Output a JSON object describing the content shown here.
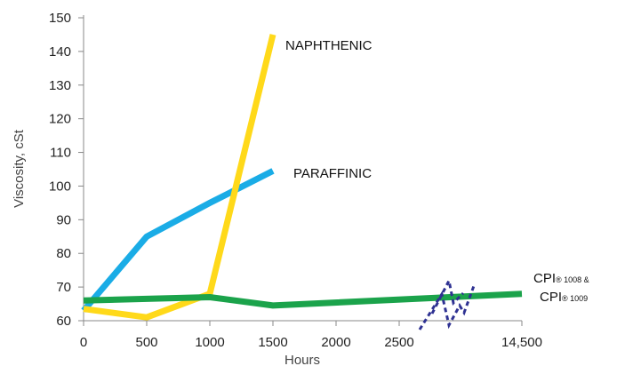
{
  "chart_data": {
    "type": "line",
    "xlabel": "Hours",
    "ylabel": "Viscosity, cSt",
    "ylim": [
      60,
      150
    ],
    "y_ticks": [
      60,
      70,
      80,
      90,
      100,
      110,
      120,
      130,
      140,
      150
    ],
    "x_ticks": [
      0,
      500,
      1000,
      1500,
      2000,
      2500,
      14500
    ],
    "x_tick_labels": [
      "0",
      "500",
      "1000",
      "1500",
      "2000",
      "2500",
      "14,500"
    ],
    "x_axis_break": "between 2500 and 14,500",
    "series": [
      {
        "name": "NAPHTHENIC",
        "color": "#FFD91A",
        "points": [
          [
            0,
            63.5
          ],
          [
            500,
            61
          ],
          [
            1000,
            68
          ],
          [
            1500,
            145
          ]
        ]
      },
      {
        "name": "PARAFFINIC",
        "color": "#1AACE6",
        "points": [
          [
            0,
            63
          ],
          [
            500,
            85
          ],
          [
            1000,
            95
          ],
          [
            1500,
            104.5
          ]
        ]
      },
      {
        "name_lines": [
          "CPI",
          "® 1008 &",
          "CPI",
          "® 1009"
        ],
        "color": "#1BA34B",
        "points": [
          [
            0,
            66
          ],
          [
            1000,
            67
          ],
          [
            1500,
            64.5
          ],
          [
            14500,
            68
          ]
        ]
      }
    ],
    "break_mark_color": "#2E3192",
    "grid": false,
    "legend": "direct labels at line ends"
  }
}
